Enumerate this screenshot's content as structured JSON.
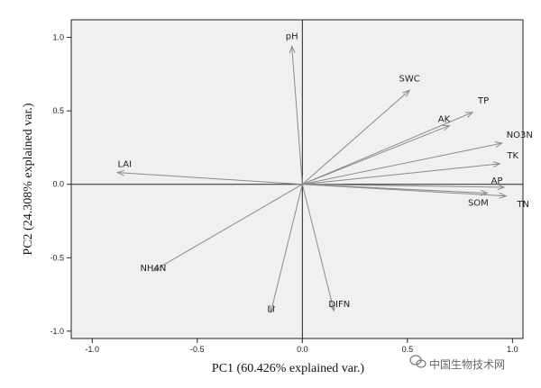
{
  "chart_data": {
    "type": "scatter",
    "title": "",
    "xlabel": "PC1 (60.426% explained var.)",
    "ylabel": "PC2 (24.308% explained var.)",
    "xlim": [
      -1.1,
      1.05
    ],
    "ylim": [
      -1.05,
      1.12
    ],
    "xticks": [
      -1.0,
      -0.5,
      0.0,
      0.5,
      1.0
    ],
    "yticks": [
      -1.0,
      -0.5,
      0.0,
      0.5,
      1.0
    ],
    "xtick_labels": [
      "-1.0",
      "-0.5",
      "0.0",
      "0.5",
      "1.0"
    ],
    "ytick_labels": [
      "-1.0",
      "-0.5",
      "0.0",
      "0.5",
      "1.0"
    ],
    "grid": false,
    "reference_lines": {
      "x": 0,
      "y": 0
    },
    "colors": {
      "background": "#f0f0f0",
      "arrow": "#8a8a8a",
      "axis": "#222222"
    },
    "vectors": [
      {
        "name": "pH",
        "x": -0.05,
        "y": 0.94
      },
      {
        "name": "SWC",
        "x": 0.51,
        "y": 0.64
      },
      {
        "name": "TP",
        "x": 0.81,
        "y": 0.49
      },
      {
        "name": "AK",
        "x": 0.7,
        "y": 0.4
      },
      {
        "name": "NO3N",
        "x": 0.95,
        "y": 0.28
      },
      {
        "name": "TK",
        "x": 0.94,
        "y": 0.14
      },
      {
        "name": "AP",
        "x": 0.96,
        "y": -0.02
      },
      {
        "name": "SOM",
        "x": 0.88,
        "y": -0.06
      },
      {
        "name": "TN",
        "x": 0.97,
        "y": -0.08
      },
      {
        "name": "LAI",
        "x": -0.88,
        "y": 0.08
      },
      {
        "name": "NH4N",
        "x": -0.71,
        "y": -0.59
      },
      {
        "name": "LI",
        "x": -0.15,
        "y": -0.87
      },
      {
        "name": "DIFN",
        "x": 0.15,
        "y": -0.86
      }
    ]
  },
  "watermark": {
    "text": "中国生物技术网",
    "icon": "wechat-icon"
  }
}
